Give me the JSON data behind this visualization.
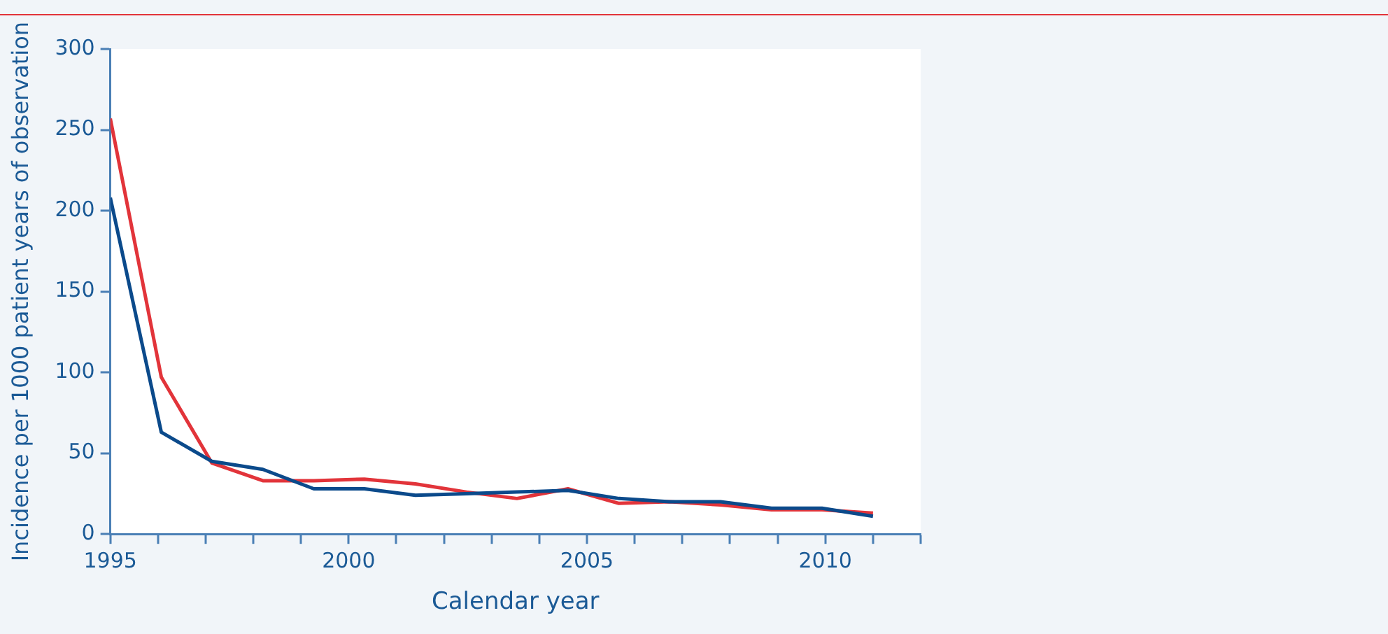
{
  "chart_data": {
    "type": "line",
    "xlabel": "Calendar year",
    "ylabel": "Incidence per 1000 patient years of observation",
    "x": [
      1995,
      1996.07,
      1997.13,
      1998.2,
      1999.27,
      2000.33,
      2001.4,
      2002.47,
      2003.53,
      2004.6,
      2005.67,
      2006.73,
      2007.8,
      2008.87,
      2009.93,
      2011
    ],
    "series": [
      {
        "color": "#0b4a8b",
        "values": [
          208,
          63,
          45,
          40,
          28,
          28,
          24,
          25,
          26,
          27,
          22,
          20,
          20,
          16,
          16,
          11
        ]
      },
      {
        "color": "#e2343a",
        "values": [
          257,
          97,
          44,
          33,
          33,
          34,
          31,
          26,
          22,
          28,
          19,
          20,
          18,
          15,
          15,
          13
        ]
      }
    ],
    "xlim": [
      1995,
      2012
    ],
    "xticks": [
      1995,
      {
        "value": 1996,
        "label": null
      },
      {
        "value": 1997,
        "label": null
      },
      {
        "value": 1998,
        "label": null
      },
      {
        "value": 1999,
        "label": null
      },
      2000,
      {
        "value": 2001,
        "label": null
      },
      {
        "value": 2002,
        "label": null
      },
      {
        "value": 2003,
        "label": null
      },
      {
        "value": 2004,
        "label": null
      },
      2005,
      {
        "value": 2006,
        "label": null
      },
      {
        "value": 2007,
        "label": null
      },
      {
        "value": 2008,
        "label": null
      },
      {
        "value": 2009,
        "label": null
      },
      2010,
      {
        "value": 2011,
        "label": null
      },
      {
        "value": 2012,
        "label": null
      }
    ],
    "ylim": [
      0,
      300
    ],
    "yticks": [
      0,
      50,
      100,
      150,
      200,
      250,
      300
    ],
    "grid": false,
    "legend": false,
    "marker": "none",
    "line_style": "solid"
  }
}
